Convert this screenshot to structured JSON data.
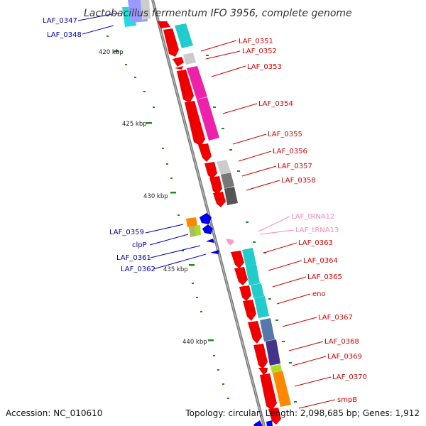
{
  "title": "Lactobacillus fermentum IFO 3956, complete genome",
  "footer": {
    "accession": "Accession: NC_010610",
    "summary": "Topology: circular; Length: 2,098,685 bp; Genes: 1,912"
  },
  "scale_marks": [
    "420 kbp",
    "425 kbp",
    "430 kbp",
    "435 kbp",
    "440 kbp"
  ],
  "colors": {
    "forward_label": "#dd0000",
    "reverse_label": "#0000bb",
    "trna_label": "#ff88bb",
    "leader_line": "#cc0000",
    "backbone": "#7a7a7a",
    "tick": "#228822"
  },
  "labels_right": [
    {
      "id": "LAF_0351",
      "text": "LAF_0351"
    },
    {
      "id": "LAF_0352",
      "text": "LAF_0352"
    },
    {
      "id": "LAF_0353",
      "text": "LAF_0353"
    },
    {
      "id": "LAF_0354",
      "text": "LAF_0354"
    },
    {
      "id": "LAF_0355",
      "text": "LAF_0355"
    },
    {
      "id": "LAF_0356",
      "text": "LAF_0356"
    },
    {
      "id": "LAF_0357",
      "text": "LAF_0357"
    },
    {
      "id": "LAF_0358",
      "text": "LAF_0358"
    },
    {
      "id": "LAF_tRNA12",
      "text": "LAF_tRNA12"
    },
    {
      "id": "LAF_tRNA13",
      "text": "LAF_tRNA13"
    },
    {
      "id": "LAF_0363",
      "text": "LAF_0363"
    },
    {
      "id": "LAF_0364",
      "text": "LAF_0364"
    },
    {
      "id": "LAF_0365",
      "text": "LAF_0365"
    },
    {
      "id": "eno",
      "text": "eno"
    },
    {
      "id": "LAF_0367",
      "text": "LAF_0367"
    },
    {
      "id": "LAF_0368",
      "text": "LAF_0368"
    },
    {
      "id": "LAF_0369",
      "text": "LAF_0369"
    },
    {
      "id": "LAF_0370",
      "text": "LAF_0370"
    },
    {
      "id": "smpB",
      "text": "smpB"
    }
  ],
  "labels_left": [
    {
      "id": "LAF_0347",
      "text": "LAF_0347"
    },
    {
      "id": "LAF_0348",
      "text": "LAF_0348"
    },
    {
      "id": "LAF_0359",
      "text": "LAF_0359"
    },
    {
      "id": "clpP",
      "text": "clpP"
    },
    {
      "id": "LAF_0361",
      "text": "LAF_0361"
    },
    {
      "id": "LAF_0362",
      "text": "LAF_0362"
    }
  ]
}
